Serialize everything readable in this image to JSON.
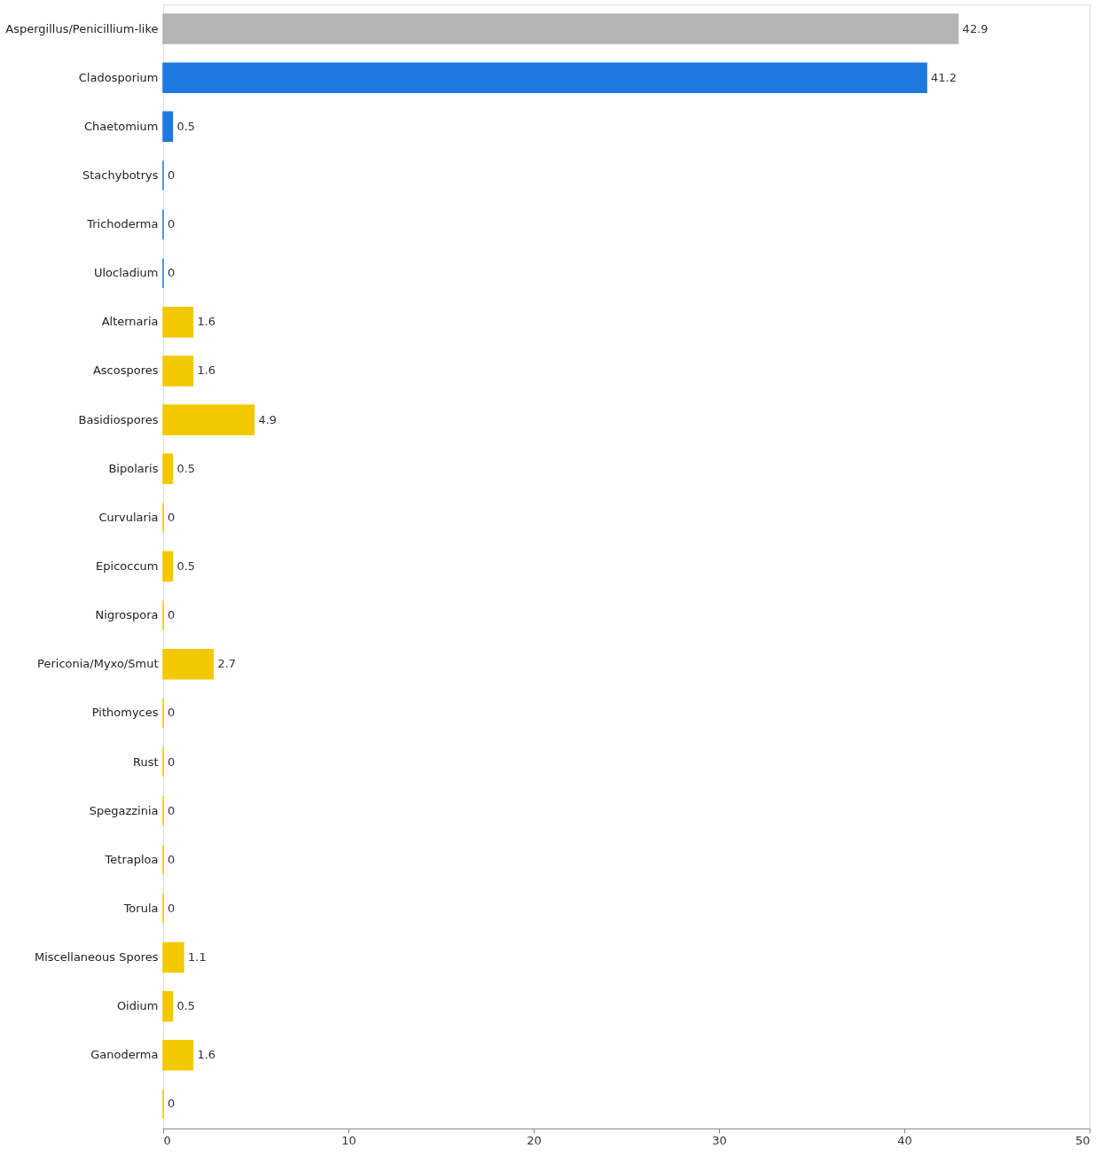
{
  "chart_data": {
    "type": "bar",
    "orientation": "horizontal",
    "categories": [
      "Aspergillus/Penicillium-like",
      "Cladosporium",
      "Chaetomium",
      "Stachybotrys",
      "Trichoderma",
      "Ulocladium",
      "Alternaria",
      "Ascospores",
      "Basidiospores",
      "Bipolaris",
      "Curvularia",
      "Epicoccum",
      "Nigrospora",
      "Periconia/Myxo/Smut",
      "Pithomyces",
      "Rust",
      "Spegazzinia",
      "Tetraploa",
      "Torula",
      "Miscellaneous Spores",
      "Oidium",
      "Ganoderma",
      null
    ],
    "values": [
      42.9,
      41.2,
      0.5,
      0,
      0,
      0,
      1.6,
      1.6,
      4.9,
      0.5,
      0,
      0.5,
      0,
      2.7,
      0,
      0,
      0,
      0,
      0,
      1.1,
      0.5,
      1.6,
      0
    ],
    "colors": [
      "#b4b4b4",
      "#1f78e0",
      "#1f78e0",
      "#1f78e0",
      "#1f78e0",
      "#1f78e0",
      "#f2c800",
      "#f2c800",
      "#f2c800",
      "#f2c800",
      "#f2c800",
      "#f2c800",
      "#f2c800",
      "#f2c800",
      "#f2c800",
      "#f2c800",
      "#f2c800",
      "#f2c800",
      "#f2c800",
      "#f2c800",
      "#f2c800",
      "#f2c800",
      "#f2c800"
    ],
    "xlim": [
      0,
      50
    ],
    "xticks": [
      0,
      10,
      20,
      30,
      40,
      50
    ],
    "data_labels": true,
    "grid": false,
    "legend": false
  }
}
